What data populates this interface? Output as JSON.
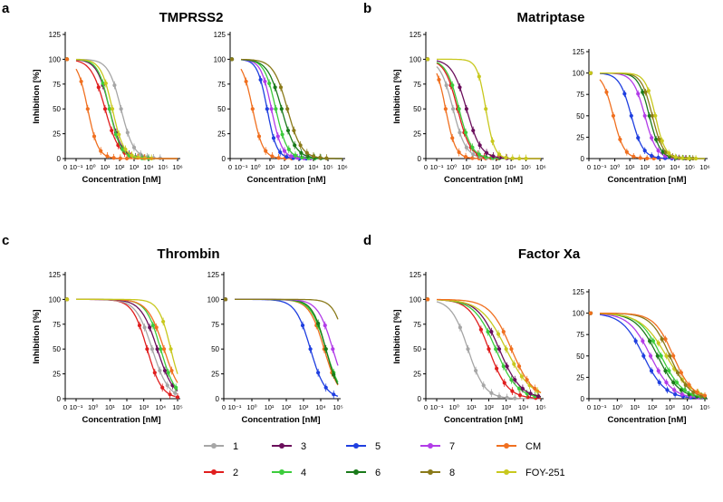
{
  "figure": {
    "panels": [
      {
        "letter": "a",
        "title": "TMPRSS2"
      },
      {
        "letter": "b",
        "title": "Matriptase"
      },
      {
        "letter": "c",
        "title": "Thrombin"
      },
      {
        "letter": "d",
        "title": "Factor Xa"
      }
    ]
  },
  "legend": [
    {
      "label": "1",
      "color": "#a6a6a6"
    },
    {
      "label": "3",
      "color": "#6b0f5c"
    },
    {
      "label": "5",
      "color": "#1f3fe0"
    },
    {
      "label": "7",
      "color": "#b23ce8"
    },
    {
      "label": "CM",
      "color": "#f07020"
    },
    {
      "label": "2",
      "color": "#e01e1e"
    },
    {
      "label": "4",
      "color": "#3ccc3c"
    },
    {
      "label": "6",
      "color": "#1a7a1a"
    },
    {
      "label": "8",
      "color": "#8a7a1a"
    },
    {
      "label": "FOY-251",
      "color": "#c8c81e"
    }
  ],
  "chart_data": [
    {
      "type": "line",
      "panel": "a",
      "title": "TMPRSS2",
      "xlabel": "Concentration [nM]",
      "ylabel": "Inhibition [%]",
      "x_scale": "log10",
      "xlim_log": [
        -1,
        6
      ],
      "ylim": [
        0,
        125
      ],
      "xticks": [
        "0",
        "10⁻¹",
        "10⁰",
        "10¹",
        "10²",
        "10³",
        "10⁴",
        "10⁵",
        "10⁶"
      ],
      "yticks": [
        0,
        25,
        50,
        75,
        100,
        125
      ],
      "series": [
        {
          "name": "1",
          "color": "#a6a6a6",
          "ic50_log": 2.1,
          "hill": 1.0
        },
        {
          "name": "2",
          "color": "#e01e1e",
          "ic50_log": 1.0,
          "hill": 0.9
        },
        {
          "name": "3",
          "color": "#6b0f5c",
          "ic50_log": 1.3,
          "hill": 1.0
        },
        {
          "name": "4",
          "color": "#3ccc3c",
          "ic50_log": 1.3,
          "hill": 1.1
        },
        {
          "name": "FOY-251",
          "color": "#c8c81e",
          "ic50_log": 1.5,
          "hill": 1.1
        },
        {
          "name": "CM",
          "color": "#f07020",
          "ic50_log": -0.2,
          "hill": 1.2
        }
      ]
    },
    {
      "type": "line",
      "panel": "a",
      "xlabel": "Concentration [nM]",
      "x_scale": "log10",
      "xlim_log": [
        -1,
        6
      ],
      "ylim": [
        0,
        125
      ],
      "xticks": [
        "0",
        "10⁻¹",
        "10⁰",
        "10¹",
        "10²",
        "10³",
        "10⁴",
        "10⁵",
        "10⁶"
      ],
      "yticks": [
        0,
        25,
        50,
        75,
        100,
        125
      ],
      "series": [
        {
          "name": "CM",
          "color": "#f07020",
          "ic50_log": -0.2,
          "hill": 1.2
        },
        {
          "name": "5",
          "color": "#1f3fe0",
          "ic50_log": 0.8,
          "hill": 1.3
        },
        {
          "name": "7",
          "color": "#b23ce8",
          "ic50_log": 1.1,
          "hill": 1.2
        },
        {
          "name": "4",
          "color": "#3ccc3c",
          "ic50_log": 1.4,
          "hill": 1.1
        },
        {
          "name": "6",
          "color": "#1a7a1a",
          "ic50_log": 1.8,
          "hill": 0.9
        },
        {
          "name": "8",
          "color": "#8a7a1a",
          "ic50_log": 2.2,
          "hill": 0.9
        }
      ]
    },
    {
      "type": "line",
      "panel": "b",
      "title": "Matriptase",
      "xlabel": "Concentration [nM]",
      "ylabel": "Inhibition [%]",
      "x_scale": "log10",
      "xlim_log": [
        -1,
        6
      ],
      "ylim": [
        0,
        125
      ],
      "xticks": [
        "0",
        "10⁻¹",
        "10⁰",
        "10¹",
        "10²",
        "10³",
        "10⁴",
        "10⁵",
        "10⁶"
      ],
      "yticks": [
        0,
        25,
        50,
        75,
        100,
        125
      ],
      "series": [
        {
          "name": "CM",
          "color": "#f07020",
          "ic50_log": -0.4,
          "hill": 1.3
        },
        {
          "name": "1",
          "color": "#a6a6a6",
          "ic50_log": 0.1,
          "hill": 1.0
        },
        {
          "name": "2",
          "color": "#e01e1e",
          "ic50_log": 0.4,
          "hill": 1.0
        },
        {
          "name": "4",
          "color": "#3ccc3c",
          "ic50_log": 0.5,
          "hill": 1.0
        },
        {
          "name": "3",
          "color": "#6b0f5c",
          "ic50_log": 1.0,
          "hill": 0.9
        },
        {
          "name": "FOY-251",
          "color": "#c8c81e",
          "ic50_log": 2.3,
          "hill": 1.5
        }
      ]
    },
    {
      "type": "line",
      "panel": "b",
      "xlabel": "Concentration [nM]",
      "x_scale": "log10",
      "xlim_log": [
        -1,
        6
      ],
      "ylim": [
        0,
        125
      ],
      "xticks": [
        "0",
        "10⁻¹",
        "10⁰",
        "10¹",
        "10²",
        "10³",
        "10⁴",
        "10⁵",
        "10⁶"
      ],
      "yticks": [
        0,
        25,
        50,
        75,
        100,
        125
      ],
      "series": [
        {
          "name": "CM",
          "color": "#f07020",
          "ic50_log": -0.1,
          "hill": 1.2
        },
        {
          "name": "5",
          "color": "#1f3fe0",
          "ic50_log": 1.1,
          "hill": 1.1
        },
        {
          "name": "7",
          "color": "#b23ce8",
          "ic50_log": 2.0,
          "hill": 1.1
        },
        {
          "name": "6",
          "color": "#1a7a1a",
          "ic50_log": 2.3,
          "hill": 1.2
        },
        {
          "name": "8",
          "color": "#8a7a1a",
          "ic50_log": 2.5,
          "hill": 1.2
        },
        {
          "name": "FOY-251",
          "color": "#c8c81e",
          "ic50_log": 2.7,
          "hill": 1.3
        }
      ]
    },
    {
      "type": "line",
      "panel": "c",
      "title": "Thrombin",
      "xlabel": "Concentration [nM]",
      "ylabel": "Inhibition [%]",
      "x_scale": "log10",
      "xlim_log": [
        -1,
        5
      ],
      "ylim": [
        0,
        125
      ],
      "xticks": [
        "0",
        "10⁻¹",
        "10⁰",
        "10¹",
        "10²",
        "10³",
        "10⁴",
        "10⁵"
      ],
      "yticks": [
        0,
        25,
        50,
        75,
        100,
        125
      ],
      "series": [
        {
          "name": "2",
          "color": "#e01e1e",
          "ic50_log": 3.2,
          "hill": 1.0
        },
        {
          "name": "1",
          "color": "#a6a6a6",
          "ic50_log": 3.5,
          "hill": 0.9
        },
        {
          "name": "3",
          "color": "#6b0f5c",
          "ic50_log": 3.8,
          "hill": 0.9
        },
        {
          "name": "4",
          "color": "#3ccc3c",
          "ic50_log": 4.0,
          "hill": 1.0
        },
        {
          "name": "CM",
          "color": "#f07020",
          "ic50_log": 4.2,
          "hill": 0.9
        },
        {
          "name": "FOY-251",
          "color": "#c8c81e",
          "ic50_log": 4.6,
          "hill": 1.2
        }
      ]
    },
    {
      "type": "line",
      "panel": "c",
      "xlabel": "Concentration [nM]",
      "x_scale": "log10",
      "xlim_log": [
        -1,
        5
      ],
      "ylim": [
        0,
        125
      ],
      "xticks": [
        "0",
        "10⁻¹",
        "10⁰",
        "10¹",
        "10²",
        "10³",
        "10⁴",
        "10⁵"
      ],
      "yticks": [
        0,
        25,
        50,
        75,
        100,
        125
      ],
      "series": [
        {
          "name": "5",
          "color": "#1f3fe0",
          "ic50_log": 3.4,
          "hill": 1.0
        },
        {
          "name": "CM",
          "color": "#f07020",
          "ic50_log": 4.2,
          "hill": 1.0
        },
        {
          "name": "4",
          "color": "#3ccc3c",
          "ic50_log": 4.3,
          "hill": 1.0
        },
        {
          "name": "6",
          "color": "#1a7a1a",
          "ic50_log": 4.3,
          "hill": 1.1
        },
        {
          "name": "7",
          "color": "#b23ce8",
          "ic50_log": 4.7,
          "hill": 1.0
        },
        {
          "name": "8",
          "color": "#8a7a1a",
          "ic50_log": 5.5,
          "hill": 1.2
        }
      ]
    },
    {
      "type": "line",
      "panel": "d",
      "title": "Factor Xa",
      "xlabel": "Concentration [nM]",
      "ylabel": "Inhibition [%]",
      "x_scale": "log10",
      "xlim_log": [
        -1,
        5
      ],
      "ylim": [
        0,
        125
      ],
      "xticks": [
        "0",
        "10⁻¹",
        "10⁰",
        "10¹",
        "10²",
        "10³",
        "10⁴",
        "10⁵"
      ],
      "yticks": [
        0,
        25,
        50,
        75,
        100,
        125
      ],
      "series": [
        {
          "name": "1",
          "color": "#a6a6a6",
          "ic50_log": 0.8,
          "hill": 0.9
        },
        {
          "name": "2",
          "color": "#e01e1e",
          "ic50_log": 2.0,
          "hill": 0.8
        },
        {
          "name": "4",
          "color": "#3ccc3c",
          "ic50_log": 2.4,
          "hill": 0.7
        },
        {
          "name": "3",
          "color": "#6b0f5c",
          "ic50_log": 2.6,
          "hill": 0.7
        },
        {
          "name": "FOY-251",
          "color": "#c8c81e",
          "ic50_log": 3.0,
          "hill": 0.6
        },
        {
          "name": "CM",
          "color": "#f07020",
          "ic50_log": 3.3,
          "hill": 0.7
        }
      ]
    },
    {
      "type": "line",
      "panel": "d",
      "xlabel": "Concentration [nM]",
      "x_scale": "log10",
      "xlim_log": [
        -1,
        5
      ],
      "ylim": [
        0,
        125
      ],
      "xticks": [
        "0",
        "10⁻¹",
        "10⁰",
        "10¹",
        "10²",
        "10³",
        "10⁴",
        "10⁵"
      ],
      "yticks": [
        0,
        25,
        50,
        75,
        100,
        125
      ],
      "series": [
        {
          "name": "5",
          "color": "#1f3fe0",
          "ic50_log": 1.5,
          "hill": 0.7
        },
        {
          "name": "7",
          "color": "#b23ce8",
          "ic50_log": 1.9,
          "hill": 0.7
        },
        {
          "name": "6",
          "color": "#1a7a1a",
          "ic50_log": 2.3,
          "hill": 0.7
        },
        {
          "name": "4",
          "color": "#3ccc3c",
          "ic50_log": 2.5,
          "hill": 0.7
        },
        {
          "name": "FOY-251",
          "color": "#c8c81e",
          "ic50_log": 2.8,
          "hill": 0.6
        },
        {
          "name": "8",
          "color": "#8a7a1a",
          "ic50_log": 3.0,
          "hill": 0.8
        },
        {
          "name": "CM",
          "color": "#f07020",
          "ic50_log": 3.2,
          "hill": 0.8
        }
      ]
    }
  ]
}
